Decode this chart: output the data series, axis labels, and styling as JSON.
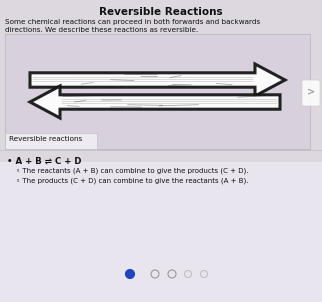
{
  "title": "Reversible Reactions",
  "subtitle_line1": "Some chemical reactions can proceed in both forwards and backwards",
  "subtitle_line2": "directions. We describe these reactions as reversible.",
  "image_caption": "Reversible reactions",
  "bullet_main": "A + B ⇌ C + D",
  "bullet_sub1": "The reactants (A + B) can combine to give the products (C + D).",
  "bullet_sub2": "The products (C + D) can combine to give the reactants (A + B).",
  "bg_top_color": "#ddd8e0",
  "bg_bottom_color": "#e8e5ee",
  "title_color": "#111111",
  "text_color": "#111111",
  "panel_bg": "#cdc5d5",
  "panel_bg2": "#d8d0dc",
  "nav_dot_filled": "#2244bb",
  "nav_dot_empty": "#cccccc",
  "arrow_color": "#111111",
  "caption_bg": "#e8e4ec",
  "image_bg_light": "#dddae5"
}
